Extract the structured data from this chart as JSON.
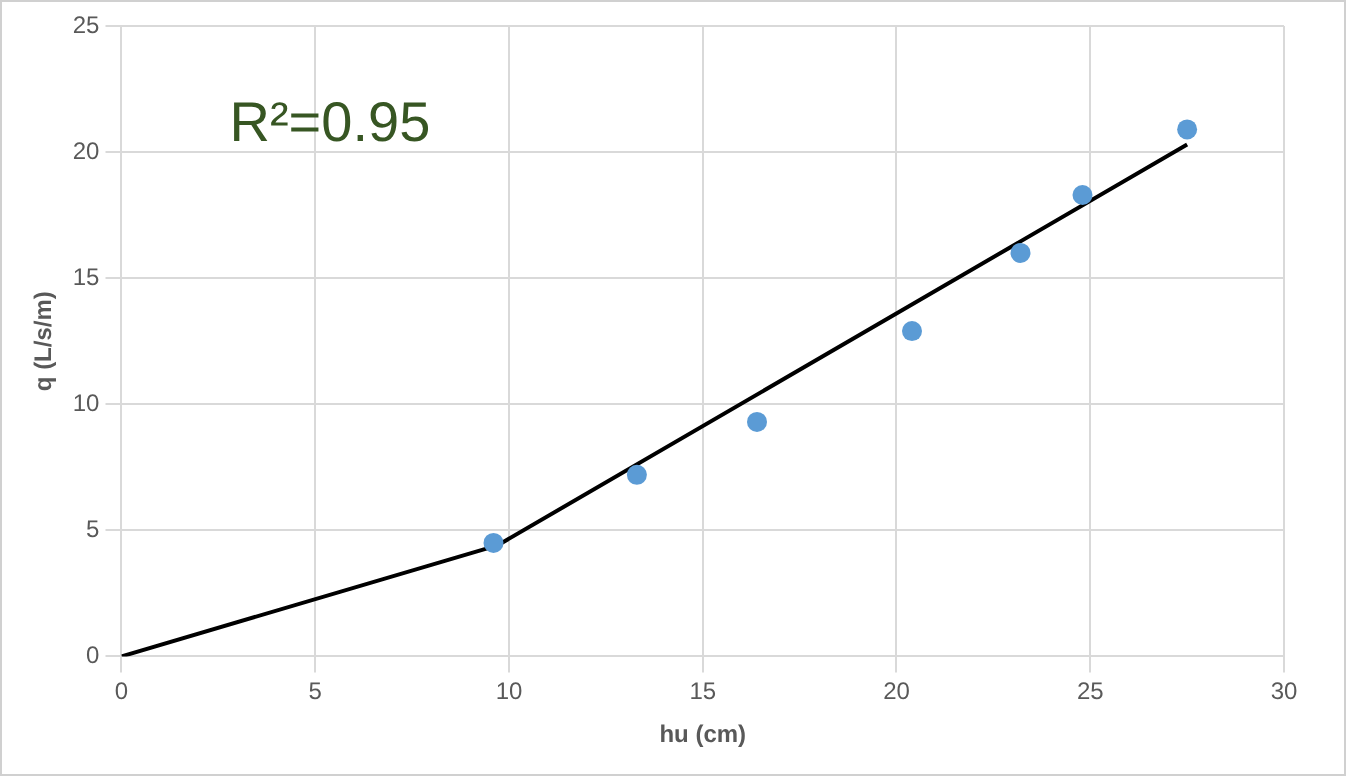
{
  "chart_data": {
    "type": "scatter",
    "xlabel": "hu (cm)",
    "ylabel": "q (L/s/m)",
    "annotations": [
      "R²=0.95"
    ],
    "series": [
      {
        "color": "#5b9bd5",
        "x": [
          9.6,
          13.3,
          16.4,
          20.4,
          23.2,
          24.8,
          27.5
        ],
        "values": [
          4.5,
          7.2,
          9.3,
          12.9,
          16.0,
          18.3,
          20.9
        ]
      },
      {
        "type": "line",
        "color": "#000000",
        "x": [
          0,
          9.7,
          27.5
        ],
        "values": [
          0,
          4.4,
          20.3
        ],
        "marker": "none"
      }
    ],
    "xlim": [
      0,
      30
    ],
    "xticks": [
      0,
      5,
      10,
      15,
      20,
      25,
      30
    ],
    "ylim": [
      0,
      25
    ],
    "yticks": [
      0,
      5,
      10,
      15,
      20,
      25
    ],
    "grid": true,
    "marker": "circle"
  }
}
